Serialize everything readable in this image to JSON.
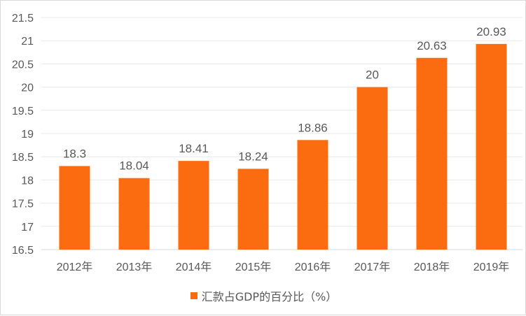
{
  "chart_data": {
    "type": "bar",
    "categories": [
      "2012年",
      "2013年",
      "2014年",
      "2015年",
      "2016年",
      "2017年",
      "2018年",
      "2019年"
    ],
    "series": [
      {
        "name": "汇款占GDP的百分比（%）",
        "values": [
          18.3,
          18.04,
          18.41,
          18.24,
          18.86,
          20,
          20.63,
          20.93
        ],
        "color": "#fa6c0f"
      }
    ],
    "ylim": [
      16.5,
      21.5
    ],
    "yticks": [
      "16.5",
      "17",
      "17.5",
      "18",
      "18.5",
      "19",
      "19.5",
      "20",
      "20.5",
      "21",
      "21.5"
    ],
    "grid": true,
    "legend_position": "bottom",
    "data_labels": [
      "18.3",
      "18.04",
      "18.41",
      "18.24",
      "18.86",
      "20",
      "20.63",
      "20.93"
    ]
  }
}
